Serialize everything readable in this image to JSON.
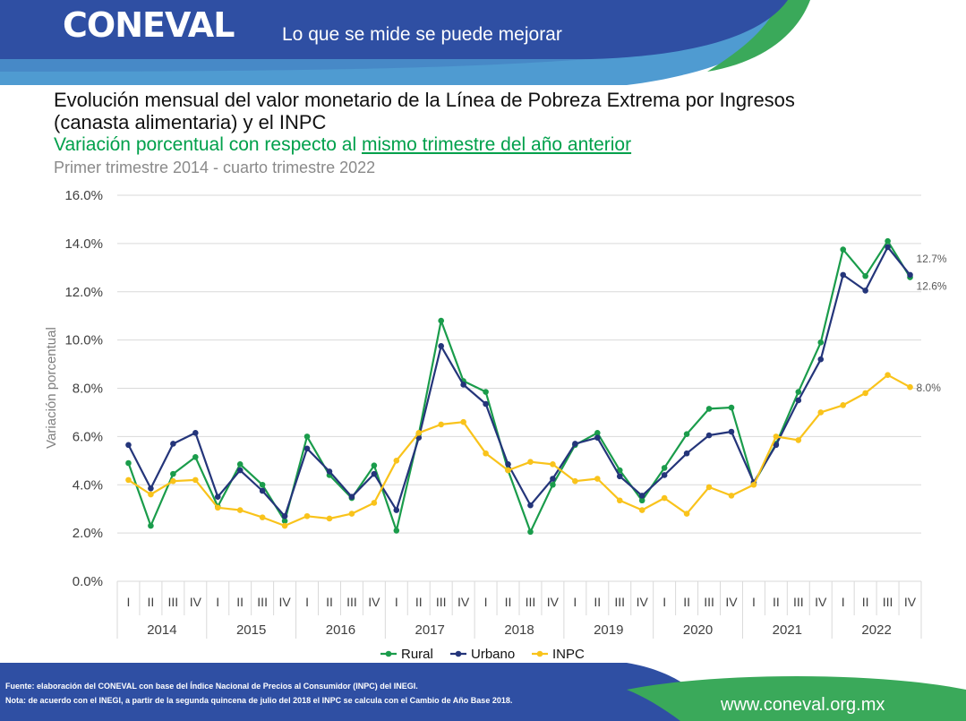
{
  "header": {
    "logo_text": "CONEVAL",
    "tagline": "Lo que se mide se puede mejorar",
    "colors": {
      "blue": "#2f4fa3",
      "light_blue": "#4f9bd1",
      "green": "#3aa95a"
    }
  },
  "title_lines": [
    "Evolución mensual del valor monetario de la Línea de Pobreza Extrema por Ingresos",
    "(canasta alimentaria) y el INPC"
  ],
  "subtitle": {
    "prefix": "Variación porcentual con respecto al ",
    "underlined": "mismo trimestre del año anterior"
  },
  "period": "Primer trimestre 2014 - cuarto trimestre 2022",
  "chart_data": {
    "type": "line",
    "ylabel": "Variación porcentual",
    "ylim": [
      0,
      16
    ],
    "yticks": [
      "0.0%",
      "2.0%",
      "4.0%",
      "6.0%",
      "8.0%",
      "10.0%",
      "12.0%",
      "14.0%",
      "16.0%"
    ],
    "quarters": [
      "I",
      "II",
      "III",
      "IV"
    ],
    "years": [
      "2014",
      "2015",
      "2016",
      "2017",
      "2018",
      "2019",
      "2020",
      "2021",
      "2022"
    ],
    "grid": "horizontal",
    "legend_position": "bottom",
    "series": [
      {
        "name": "Rural",
        "color": "#1a9c4b",
        "values": [
          4.9,
          2.3,
          4.45,
          5.15,
          3.1,
          4.85,
          4.0,
          2.5,
          6.0,
          4.4,
          3.45,
          4.8,
          2.1,
          6.1,
          10.8,
          8.3,
          7.85,
          4.6,
          2.05,
          4.0,
          5.65,
          6.15,
          4.6,
          3.35,
          4.7,
          6.1,
          7.15,
          7.2,
          4.05,
          5.7,
          7.85,
          9.9,
          13.75,
          12.65,
          14.1,
          12.6
        ],
        "end_label": "12.6%"
      },
      {
        "name": "Urbano",
        "color": "#24357a",
        "values": [
          5.65,
          3.85,
          5.7,
          6.15,
          3.5,
          4.6,
          3.75,
          2.7,
          5.5,
          4.55,
          3.5,
          4.45,
          2.95,
          5.95,
          9.75,
          8.15,
          7.35,
          4.85,
          3.15,
          4.25,
          5.7,
          5.95,
          4.35,
          3.55,
          4.4,
          5.3,
          6.05,
          6.2,
          4.1,
          5.65,
          7.5,
          9.2,
          12.7,
          12.05,
          13.85,
          12.7
        ],
        "end_label": "12.7%"
      },
      {
        "name": "INPC",
        "color": "#f9c31b",
        "values": [
          4.2,
          3.6,
          4.15,
          4.2,
          3.05,
          2.95,
          2.65,
          2.3,
          2.7,
          2.6,
          2.8,
          3.25,
          5.0,
          6.15,
          6.5,
          6.6,
          5.3,
          4.6,
          4.95,
          4.85,
          4.15,
          4.25,
          3.35,
          2.95,
          3.45,
          2.8,
          3.9,
          3.55,
          4.0,
          6.0,
          5.85,
          7.0,
          7.3,
          7.8,
          8.55,
          8.05
        ],
        "end_label": "8.0%"
      }
    ]
  },
  "footer": {
    "notes": [
      "Fuente: elaboración del CONEVAL con base del Índice Nacional de Precios al Consumidor (INPC) del INEGI.",
      "Nota: de acuerdo con el INEGI, a partir de la segunda quincena de julio del 2018 el INPC se calcula con el Cambio de Año Base 2018."
    ],
    "website": "www.coneval.org.mx"
  }
}
